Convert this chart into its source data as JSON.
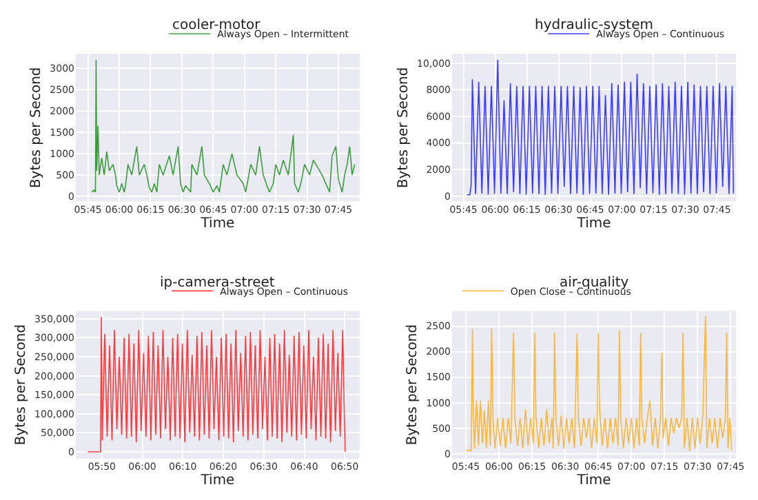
{
  "chart_data": [
    {
      "type": "line",
      "title": "cooler-motor",
      "xlabel": "Time",
      "ylabel": "Bytes per Second",
      "grid": true,
      "legend": "top right",
      "marker": "none",
      "line_style": "solid",
      "xlim": [
        5.653,
        7.92
      ],
      "ylim": [
        -120,
        3340
      ],
      "xticks": [
        {
          "value": 5.75,
          "label": "05:45"
        },
        {
          "value": 6.0,
          "label": "06:00"
        },
        {
          "value": 6.25,
          "label": "06:15"
        },
        {
          "value": 6.5,
          "label": "06:30"
        },
        {
          "value": 6.75,
          "label": "06:45"
        },
        {
          "value": 7.0,
          "label": "07:00"
        },
        {
          "value": 7.25,
          "label": "07:15"
        },
        {
          "value": 7.5,
          "label": "07:30"
        },
        {
          "value": 7.75,
          "label": "07:45"
        }
      ],
      "yticks": [
        0,
        500,
        1000,
        1500,
        2000,
        2500,
        3000
      ],
      "x": [
        5.78,
        5.8,
        5.81,
        5.815,
        5.82,
        5.83,
        5.84,
        5.86,
        5.88,
        5.9,
        5.92,
        5.95,
        5.97,
        5.98,
        6.0,
        6.02,
        6.04,
        6.05,
        6.07,
        6.1,
        6.14,
        6.16,
        6.2,
        6.22,
        6.24,
        6.26,
        6.28,
        6.3,
        6.32,
        6.35,
        6.4,
        6.43,
        6.47,
        6.49,
        6.51,
        6.53,
        6.57,
        6.58,
        6.62,
        6.66,
        6.68,
        6.72,
        6.75,
        6.78,
        6.8,
        6.83,
        6.86,
        6.9,
        6.94,
        6.99,
        7.01,
        7.05,
        7.09,
        7.12,
        7.15,
        7.18,
        7.2,
        7.23,
        7.25,
        7.28,
        7.31,
        7.35,
        7.39,
        7.4,
        7.43,
        7.45,
        7.48,
        7.52,
        7.55,
        7.62,
        7.65,
        7.68,
        7.7,
        7.73,
        7.75,
        7.78,
        7.8,
        7.82,
        7.84,
        7.86,
        7.88
      ],
      "series": [
        {
          "name": "Always Open – Intermittent",
          "color": "#008000",
          "values": [
            100,
            150,
            100,
            3200,
            600,
            1650,
            500,
            900,
            500,
            1050,
            600,
            750,
            500,
            250,
            100,
            300,
            100,
            250,
            750,
            500,
            1170,
            500,
            750,
            500,
            200,
            100,
            300,
            100,
            750,
            500,
            950,
            500,
            1170,
            300,
            100,
            250,
            100,
            750,
            500,
            1170,
            500,
            300,
            100,
            250,
            100,
            750,
            500,
            1000,
            500,
            300,
            100,
            750,
            500,
            1170,
            500,
            250,
            100,
            300,
            750,
            500,
            850,
            500,
            1440,
            300,
            100,
            300,
            750,
            500,
            850,
            500,
            300,
            100,
            950,
            1170,
            400,
            100,
            500,
            750,
            1170,
            500,
            750
          ]
        }
      ]
    },
    {
      "type": "line",
      "title": "hydraulic-system",
      "xlabel": "Time",
      "ylabel": "Bytes per Second",
      "grid": true,
      "legend": "top right",
      "marker": "none",
      "line_style": "solid",
      "xlim": [
        5.66,
        7.9
      ],
      "ylim": [
        -410,
        10720
      ],
      "xticks": [
        {
          "value": 5.75,
          "label": "05:45"
        },
        {
          "value": 6.0,
          "label": "06:00"
        },
        {
          "value": 6.25,
          "label": "06:15"
        },
        {
          "value": 6.5,
          "label": "06:30"
        },
        {
          "value": 6.75,
          "label": "06:45"
        },
        {
          "value": 7.0,
          "label": "07:00"
        },
        {
          "value": 7.25,
          "label": "07:15"
        },
        {
          "value": 7.5,
          "label": "07:30"
        },
        {
          "value": 7.75,
          "label": "07:45"
        }
      ],
      "yticks": [
        0,
        2000,
        4000,
        6000,
        8000,
        {
          "value": 10000,
          "label": "10,000"
        }
      ],
      "x": [
        5.78,
        5.8,
        5.81,
        5.82,
        5.845,
        5.87,
        5.895,
        5.92,
        5.945,
        5.97,
        5.995,
        6.02,
        6.045,
        6.07,
        6.095,
        6.12,
        6.145,
        6.17,
        6.195,
        6.22,
        6.245,
        6.27,
        6.295,
        6.32,
        6.345,
        6.37,
        6.395,
        6.42,
        6.445,
        6.47,
        6.495,
        6.52,
        6.545,
        6.57,
        6.595,
        6.62,
        6.645,
        6.67,
        6.695,
        6.72,
        6.745,
        6.77,
        6.795,
        6.82,
        6.845,
        6.87,
        6.895,
        6.92,
        6.945,
        6.97,
        6.995,
        7.02,
        7.045,
        7.07,
        7.095,
        7.12,
        7.145,
        7.17,
        7.195,
        7.22,
        7.245,
        7.27,
        7.295,
        7.32,
        7.345,
        7.37,
        7.395,
        7.42,
        7.445,
        7.47,
        7.495,
        7.52,
        7.545,
        7.57,
        7.595,
        7.62,
        7.645,
        7.67,
        7.695,
        7.72,
        7.745,
        7.77,
        7.795,
        7.82,
        7.845,
        7.87,
        7.88
      ],
      "series": [
        {
          "name": "Always Open – Continuous",
          "color": "#0000ff",
          "values": [
            100,
            100,
            800,
            8800,
            150,
            8600,
            200,
            8300,
            100,
            8300,
            150,
            10250,
            200,
            7200,
            150,
            8500,
            300,
            8300,
            150,
            8300,
            100,
            8300,
            200,
            8300,
            150,
            8300,
            100,
            8300,
            200,
            8300,
            150,
            8300,
            700,
            8300,
            150,
            8300,
            200,
            8200,
            100,
            8300,
            150,
            8300,
            200,
            8300,
            150,
            7600,
            100,
            8500,
            200,
            8400,
            150,
            8600,
            300,
            8600,
            150,
            9200,
            600,
            8500,
            150,
            8300,
            200,
            8400,
            100,
            8500,
            150,
            8300,
            200,
            8600,
            150,
            8300,
            100,
            8600,
            200,
            8400,
            150,
            8300,
            300,
            8300,
            150,
            8300,
            200,
            8500,
            700,
            8300,
            150,
            8300,
            200
          ]
        }
      ]
    },
    {
      "type": "line",
      "title": "ip-camera-street",
      "xlabel": "Time",
      "ylabel": "Bytes per Second",
      "grid": true,
      "legend": "top right",
      "marker": "none",
      "line_style": "solid",
      "xlim": [
        5.726,
        6.895
      ],
      "ylim": [
        -18000,
        370600
      ],
      "xticks": [
        {
          "value": 5.8333,
          "label": "05:50"
        },
        {
          "value": 6.0,
          "label": "06:00"
        },
        {
          "value": 6.1667,
          "label": "06:10"
        },
        {
          "value": 6.3333,
          "label": "06:20"
        },
        {
          "value": 6.5,
          "label": "06:30"
        },
        {
          "value": 6.6667,
          "label": "06:40"
        },
        {
          "value": 6.8333,
          "label": "06:50"
        }
      ],
      "yticks": [
        0,
        {
          "value": 50000,
          "label": "50,000"
        },
        {
          "value": 100000,
          "label": "100,000"
        },
        {
          "value": 150000,
          "label": "150,000"
        },
        {
          "value": 200000,
          "label": "200,000"
        },
        {
          "value": 250000,
          "label": "250,000"
        },
        {
          "value": 300000,
          "label": "300,000"
        },
        {
          "value": 350000,
          "label": "350,000"
        }
      ],
      "x": [
        5.775,
        5.828,
        5.831,
        5.835,
        5.845,
        5.855,
        5.865,
        5.875,
        5.885,
        5.895,
        5.905,
        5.915,
        5.925,
        5.935,
        5.945,
        5.955,
        5.965,
        5.975,
        5.985,
        5.995,
        6.005,
        6.015,
        6.025,
        6.035,
        6.045,
        6.055,
        6.065,
        6.075,
        6.085,
        6.095,
        6.105,
        6.115,
        6.125,
        6.135,
        6.145,
        6.155,
        6.165,
        6.175,
        6.185,
        6.195,
        6.205,
        6.215,
        6.225,
        6.235,
        6.245,
        6.255,
        6.265,
        6.275,
        6.285,
        6.295,
        6.305,
        6.315,
        6.325,
        6.335,
        6.345,
        6.355,
        6.365,
        6.375,
        6.385,
        6.395,
        6.405,
        6.415,
        6.425,
        6.435,
        6.445,
        6.455,
        6.465,
        6.475,
        6.485,
        6.495,
        6.505,
        6.515,
        6.525,
        6.535,
        6.545,
        6.555,
        6.565,
        6.575,
        6.585,
        6.595,
        6.605,
        6.615,
        6.625,
        6.635,
        6.645,
        6.655,
        6.665,
        6.675,
        6.685,
        6.695,
        6.705,
        6.715,
        6.725,
        6.735,
        6.745,
        6.755,
        6.765,
        6.775,
        6.785,
        6.795,
        6.805,
        6.815,
        6.825,
        6.835
      ],
      "series": [
        {
          "name": "Always Open – Continuous",
          "color": "#ff0000",
          "values": [
            0,
            0,
            355000,
            30000,
            310000,
            40000,
            280000,
            30000,
            320000,
            60000,
            250000,
            45000,
            300000,
            35000,
            310000,
            40000,
            285000,
            25000,
            320000,
            55000,
            260000,
            40000,
            305000,
            30000,
            315000,
            45000,
            280000,
            35000,
            320000,
            60000,
            250000,
            30000,
            300000,
            40000,
            310000,
            35000,
            285000,
            25000,
            320000,
            50000,
            255000,
            40000,
            305000,
            30000,
            315000,
            45000,
            280000,
            35000,
            320000,
            60000,
            250000,
            30000,
            300000,
            40000,
            310000,
            35000,
            285000,
            25000,
            320000,
            55000,
            260000,
            40000,
            305000,
            30000,
            315000,
            45000,
            280000,
            35000,
            320000,
            60000,
            250000,
            30000,
            300000,
            40000,
            310000,
            35000,
            285000,
            25000,
            320000,
            50000,
            255000,
            40000,
            305000,
            30000,
            315000,
            45000,
            280000,
            35000,
            320000,
            60000,
            250000,
            30000,
            300000,
            40000,
            310000,
            35000,
            285000,
            25000,
            320000,
            55000,
            260000,
            40000,
            320000,
            0
          ]
        }
      ]
    },
    {
      "type": "line",
      "title": "air-quality",
      "xlabel": "Time",
      "ylabel": "Bytes per Second",
      "grid": true,
      "legend": "top left",
      "marker": "none",
      "line_style": "solid",
      "xlim": [
        5.646,
        7.79
      ],
      "ylim": [
        -100,
        2800
      ],
      "xticks": [
        {
          "value": 5.75,
          "label": "05:45"
        },
        {
          "value": 6.0,
          "label": "06:00"
        },
        {
          "value": 6.25,
          "label": "06:15"
        },
        {
          "value": 6.5,
          "label": "06:30"
        },
        {
          "value": 6.75,
          "label": "06:45"
        },
        {
          "value": 7.0,
          "label": "07:00"
        },
        {
          "value": 7.25,
          "label": "07:15"
        },
        {
          "value": 7.5,
          "label": "07:30"
        },
        {
          "value": 7.75,
          "label": "07:45"
        }
      ],
      "yticks": [
        0,
        500,
        1000,
        1500,
        2000,
        2500
      ],
      "x": [
        5.756,
        5.79,
        5.8,
        5.805,
        5.815,
        5.83,
        5.845,
        5.86,
        5.875,
        5.89,
        5.905,
        5.92,
        5.935,
        5.945,
        5.955,
        5.97,
        5.99,
        6.01,
        6.03,
        6.05,
        6.07,
        6.09,
        6.11,
        6.12,
        6.14,
        6.16,
        6.18,
        6.2,
        6.22,
        6.24,
        6.26,
        6.27,
        6.28,
        6.3,
        6.32,
        6.34,
        6.36,
        6.38,
        6.4,
        6.41,
        6.42,
        6.43,
        6.45,
        6.47,
        6.49,
        6.51,
        6.53,
        6.55,
        6.57,
        6.59,
        6.6,
        6.62,
        6.64,
        6.66,
        6.68,
        6.7,
        6.72,
        6.74,
        6.75,
        6.76,
        6.78,
        6.8,
        6.82,
        6.84,
        6.86,
        6.88,
        6.9,
        6.91,
        6.92,
        6.94,
        6.96,
        6.98,
        7.0,
        7.02,
        7.04,
        7.06,
        7.07,
        7.08,
        7.1,
        7.12,
        7.14,
        7.16,
        7.18,
        7.2,
        7.22,
        7.23,
        7.24,
        7.26,
        7.28,
        7.3,
        7.32,
        7.34,
        7.36,
        7.38,
        7.39,
        7.4,
        7.42,
        7.44,
        7.46,
        7.48,
        7.5,
        7.52,
        7.54,
        7.56,
        7.57,
        7.59,
        7.61,
        7.63,
        7.65,
        7.67,
        7.69,
        7.71,
        7.72,
        7.73,
        7.745,
        7.756
      ],
      "series": [
        {
          "name": "Open Close – Continuous",
          "color": "#ffa500",
          "values": [
            60,
            60,
            2450,
            1040,
            100,
            1040,
            150,
            1040,
            200,
            850,
            100,
            1040,
            150,
            2450,
            700,
            100,
            700,
            150,
            700,
            100,
            700,
            200,
            2370,
            700,
            150,
            700,
            100,
            870,
            150,
            700,
            200,
            2370,
            700,
            100,
            700,
            150,
            870,
            200,
            700,
            100,
            2370,
            700,
            150,
            750,
            100,
            700,
            200,
            700,
            100,
            2360,
            700,
            150,
            700,
            300,
            700,
            100,
            700,
            200,
            2370,
            870,
            150,
            700,
            100,
            700,
            200,
            700,
            150,
            2420,
            700,
            100,
            700,
            200,
            700,
            100,
            700,
            150,
            2370,
            700,
            200,
            700,
            1040,
            150,
            700,
            100,
            700,
            1980,
            300,
            700,
            150,
            700,
            400,
            700,
            500,
            700,
            2370,
            100,
            700,
            50,
            700,
            100,
            700,
            200,
            750,
            2700,
            100,
            700,
            200,
            700,
            100,
            700,
            300,
            700,
            2370,
            100,
            700,
            50
          ]
        }
      ]
    }
  ]
}
